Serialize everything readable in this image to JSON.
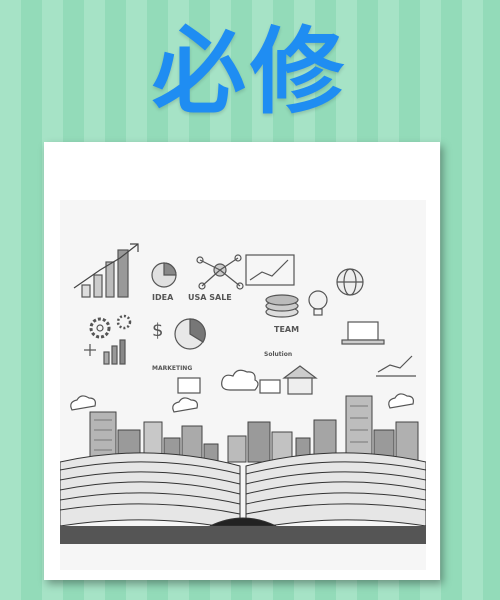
{
  "header": {
    "title": "必修"
  },
  "illustration": {
    "labels": {
      "idea": "IDEA",
      "sale": "USA SALE",
      "team": "TEAM",
      "marketing": "MARKETING",
      "solution": "Solution"
    }
  },
  "colors": {
    "title": "#1f8df2",
    "stripe_light": "#a6e3c6",
    "stripe_dark": "#93dbb9"
  }
}
